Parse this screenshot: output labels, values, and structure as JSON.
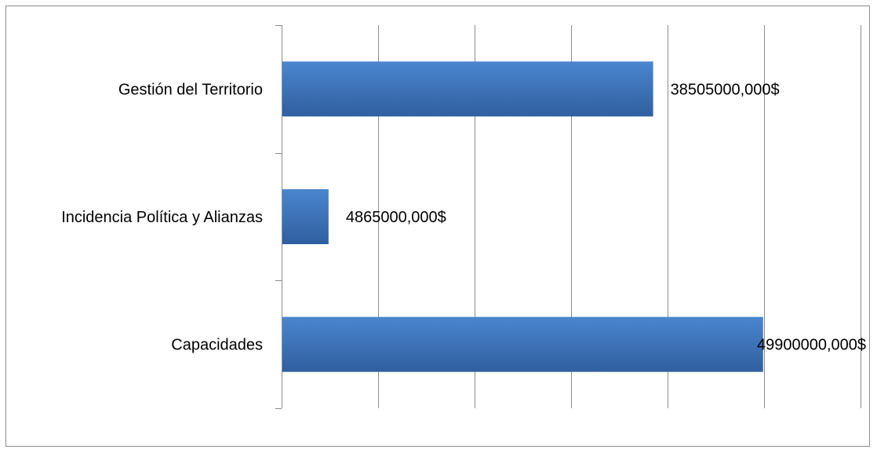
{
  "chart_data": {
    "type": "bar",
    "orientation": "horizontal",
    "categories": [
      "Gestión del Territorio",
      "Incidencia Política y Alianzas",
      "Capacidades"
    ],
    "values": [
      38505000,
      4865000,
      49900000
    ],
    "value_labels": [
      "38505000,000$",
      "4865000,000$",
      "49900000,000$"
    ],
    "xlim": [
      0,
      60000000
    ],
    "x_gridline_step": 10000000,
    "title": "",
    "xlabel": "",
    "ylabel": "",
    "grid": true,
    "legend": "none",
    "colors": {
      "bar_top": "#4a86cf",
      "bar_bottom": "#2f5fa0",
      "grid": "#8c8c8c"
    }
  }
}
